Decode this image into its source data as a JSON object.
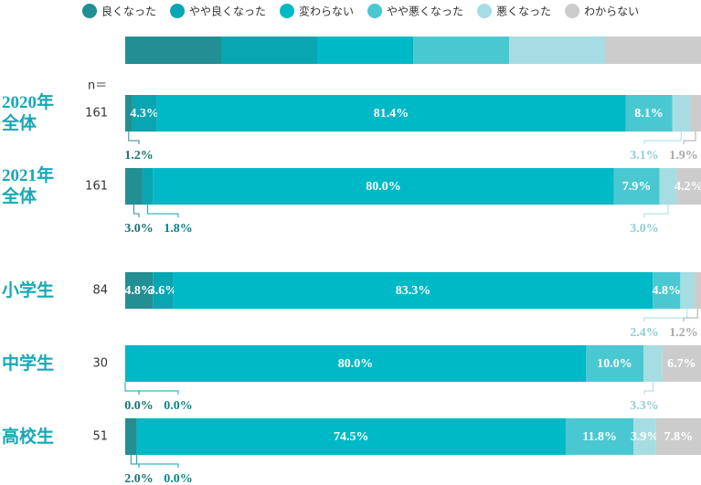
{
  "chart_data": {
    "type": "stacked_bar_100",
    "n_label": "n＝",
    "categories": [
      "2020年\n全体",
      "2021年\n全体",
      "小学生",
      "中学生",
      "高校生"
    ],
    "n": [
      161,
      161,
      84,
      30,
      51
    ],
    "series": [
      {
        "name": "良くなった",
        "color": "#238e93",
        "values": [
          1.2,
          3.0,
          4.8,
          0.0,
          2.0
        ],
        "value_labels": [
          "1.2%",
          "3.0%",
          "4.8%",
          "0.0%",
          "2.0%"
        ]
      },
      {
        "name": "やや良くなった",
        "color": "#08a6b2",
        "values": [
          4.3,
          1.8,
          3.6,
          0.0,
          0.0
        ],
        "value_labels": [
          "4.3%",
          "1.8%",
          "3.6%",
          "0.0%",
          "0.0%"
        ]
      },
      {
        "name": "変わらない",
        "color": "#00b9c6",
        "values": [
          81.4,
          80.0,
          83.3,
          80.0,
          74.5
        ],
        "value_labels": [
          "81.4%",
          "80.0%",
          "83.3%",
          "80.0%",
          "74.5%"
        ]
      },
      {
        "name": "やや悪くなった",
        "color": "#4ac8d1",
        "values": [
          8.1,
          7.9,
          4.8,
          10.0,
          11.8
        ],
        "value_labels": [
          "8.1%",
          "7.9%",
          "4.8%",
          "10.0%",
          "11.8%"
        ]
      },
      {
        "name": "悪くなった",
        "color": "#a6dde2",
        "values": [
          3.1,
          3.0,
          2.4,
          3.3,
          3.9
        ],
        "value_labels": [
          "3.1%",
          "3.0%",
          "2.4%",
          "3.3%",
          "3.9%"
        ]
      },
      {
        "name": "わからない",
        "color": "#cccccc",
        "values": [
          1.9,
          4.2,
          1.2,
          6.7,
          7.8
        ],
        "value_labels": [
          "1.9%",
          "4.2%",
          "1.2%",
          "6.7%",
          "7.8%"
        ]
      }
    ]
  }
}
